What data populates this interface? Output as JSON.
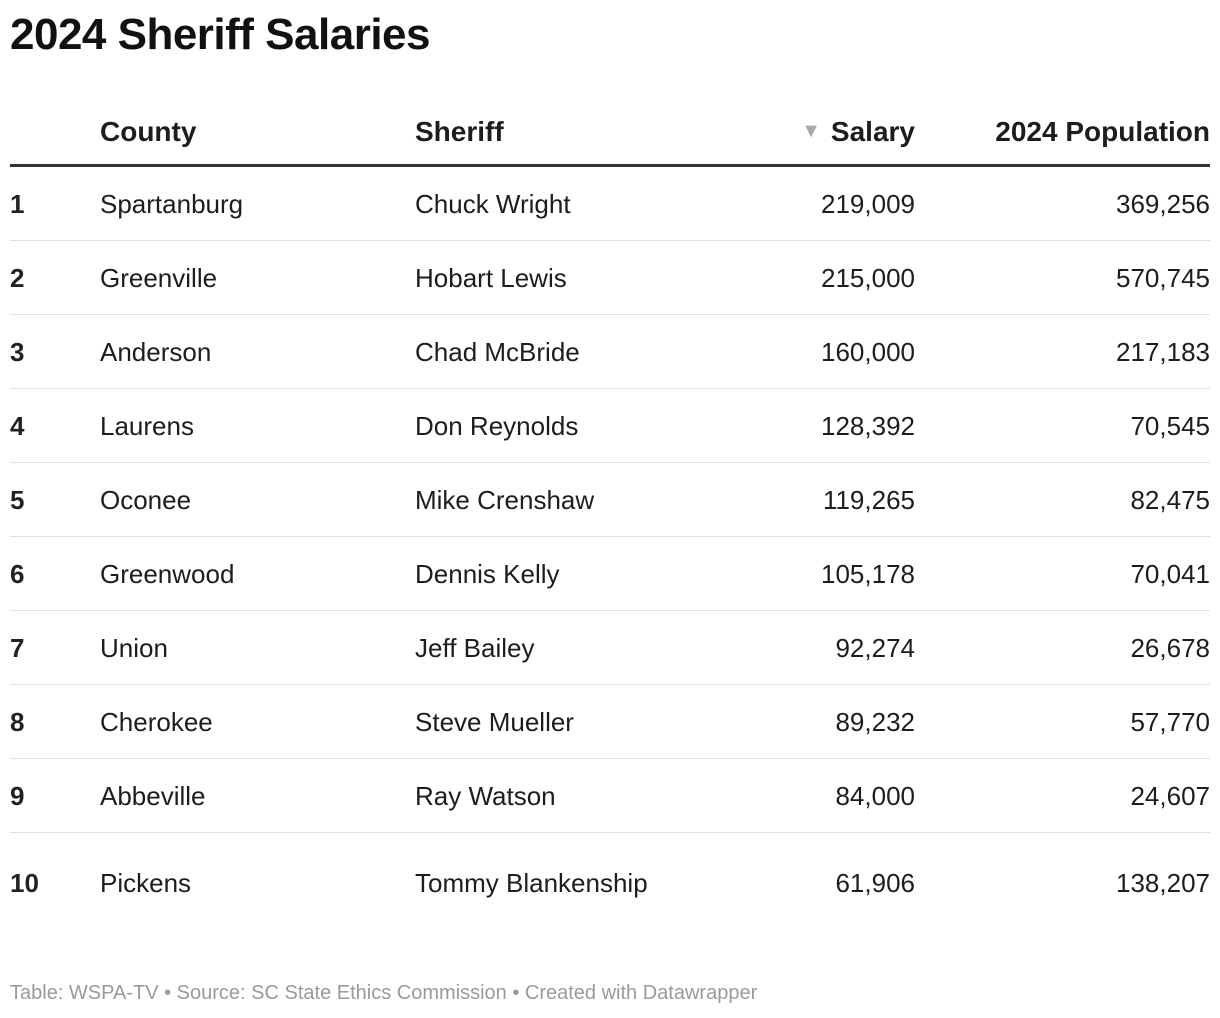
{
  "title": "2024 Sheriff Salaries",
  "chart_data": {
    "type": "table",
    "title": "2024 Sheriff Salaries",
    "columns": [
      "",
      "County",
      "Sheriff",
      "Salary",
      "2024 Population"
    ],
    "sorted_by": "Salary",
    "sort_direction": "descending",
    "rows": [
      {
        "rank": "1",
        "county": "Spartanburg",
        "sheriff": "Chuck Wright",
        "salary": "219,009",
        "population": "369,256"
      },
      {
        "rank": "2",
        "county": "Greenville",
        "sheriff": "Hobart Lewis",
        "salary": "215,000",
        "population": "570,745"
      },
      {
        "rank": "3",
        "county": "Anderson",
        "sheriff": "Chad McBride",
        "salary": "160,000",
        "population": "217,183"
      },
      {
        "rank": "4",
        "county": "Laurens",
        "sheriff": "Don Reynolds",
        "salary": "128,392",
        "population": "70,545"
      },
      {
        "rank": "5",
        "county": "Oconee",
        "sheriff": "Mike Crenshaw",
        "salary": "119,265",
        "population": "82,475"
      },
      {
        "rank": "6",
        "county": "Greenwood",
        "sheriff": "Dennis Kelly",
        "salary": "105,178",
        "population": "70,041"
      },
      {
        "rank": "7",
        "county": "Union",
        "sheriff": "Jeff Bailey",
        "salary": "92,274",
        "population": "26,678"
      },
      {
        "rank": "8",
        "county": "Cherokee",
        "sheriff": "Steve Mueller",
        "salary": "89,232",
        "population": "57,770"
      },
      {
        "rank": "9",
        "county": "Abbeville",
        "sheriff": "Ray Watson",
        "salary": "84,000",
        "population": "24,607"
      },
      {
        "rank": "10",
        "county": "Pickens",
        "sheriff": "Tommy Blankenship",
        "salary": "61,906",
        "population": "138,207"
      }
    ]
  },
  "footer": "Table: WSPA-TV • Source: SC State Ethics Commission • Created with Datawrapper",
  "icons": {
    "sort": "sort-descending-icon"
  },
  "colors": {
    "header_rule": "#333333",
    "row_rule": "#e2e2e2",
    "footer_text": "#9a9a9a",
    "sort_arrow": "#aaaaaa"
  }
}
